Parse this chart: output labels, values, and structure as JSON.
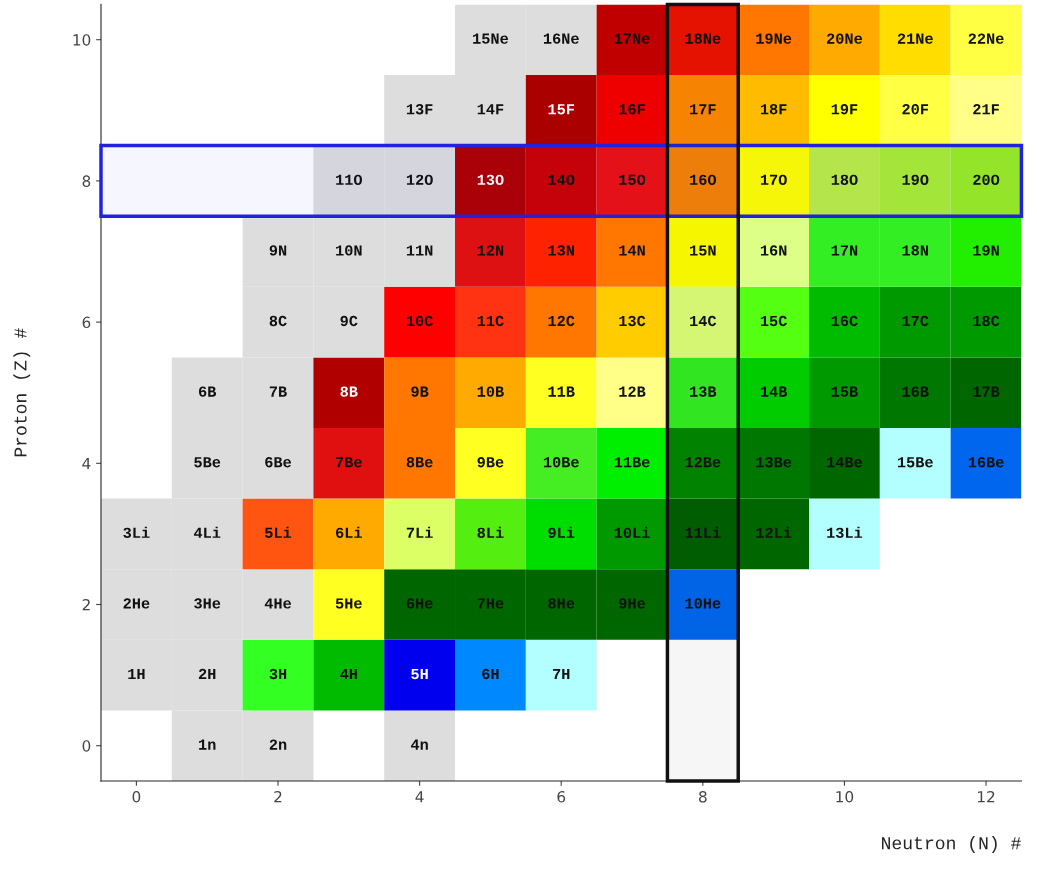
{
  "chart_data": {
    "type": "heatmap",
    "xlabel": "Neutron (N) #",
    "ylabel": "Proton (Z) #",
    "categories": [
      "0",
      null,
      "2",
      null,
      "4",
      null,
      "6",
      null,
      "8",
      null,
      "10",
      null,
      "12"
    ],
    "y_categories": [
      "10",
      null,
      "8",
      null,
      "6",
      null,
      "4",
      null,
      "2",
      null,
      "0"
    ],
    "bands": [
      {
        "axis": "y",
        "from": "8",
        "to": "8",
        "color": "#2222dd"
      },
      {
        "axis": "x",
        "from": "8",
        "to": "8",
        "color": "#111111"
      }
    ],
    "cells": [
      [
        null,
        null,
        null,
        null,
        null,
        15,
        16,
        17,
        18,
        19,
        20,
        21,
        22
      ],
      [
        null,
        null,
        null,
        null,
        13,
        14,
        15,
        16,
        17,
        18,
        19,
        20,
        21
      ],
      [
        null,
        null,
        null,
        11,
        12,
        13,
        14,
        15,
        16,
        17,
        18,
        19,
        20
      ],
      [
        null,
        null,
        9,
        10,
        11,
        12,
        13,
        14,
        15,
        16,
        17,
        18,
        19
      ],
      [
        null,
        null,
        8,
        9,
        10,
        11,
        12,
        13,
        14,
        15,
        16,
        17,
        18
      ],
      [
        null,
        6,
        7,
        8,
        9,
        10,
        11,
        12,
        13,
        14,
        15,
        16,
        17
      ],
      [
        null,
        5,
        6,
        7,
        8,
        9,
        10,
        11,
        12,
        13,
        14,
        15,
        16
      ],
      [
        3,
        4,
        5,
        6,
        7,
        8,
        9,
        10,
        11,
        12,
        13,
        null,
        null
      ],
      [
        2,
        3,
        4,
        5,
        6,
        7,
        8,
        9,
        10,
        null,
        null,
        null,
        null
      ],
      [
        1,
        2,
        3,
        4,
        5,
        6,
        7,
        null,
        null,
        null,
        null,
        null,
        null
      ],
      [
        null,
        1,
        2,
        null,
        4,
        null,
        null,
        null,
        null,
        null,
        null,
        null,
        null
      ]
    ],
    "cell_labels": [
      [
        null,
        null,
        null,
        null,
        null,
        "15Ne",
        "16Ne",
        "17Ne",
        "18Ne",
        "19Ne",
        "20Ne",
        "21Ne",
        "22Ne"
      ],
      [
        null,
        null,
        null,
        null,
        "13F",
        "14F",
        "15F",
        "16F",
        "17F",
        "18F",
        "19F",
        "20F",
        "21F"
      ],
      [
        null,
        null,
        null,
        "11O",
        "12O",
        "13O",
        "14O",
        "15O",
        "16O",
        "17O",
        "18O",
        "19O",
        "20O"
      ],
      [
        null,
        null,
        "9N",
        "10N",
        "11N",
        "12N",
        "13N",
        "14N",
        "15N",
        "16N",
        "17N",
        "18N",
        "19N"
      ],
      [
        null,
        null,
        "8C",
        "9C",
        "10C",
        "11C",
        "12C",
        "13C",
        "14C",
        "15C",
        "16C",
        "17C",
        "18C"
      ],
      [
        null,
        "6B",
        "7B",
        "8B",
        "9B",
        "10B",
        "11B",
        "12B",
        "13B",
        "14B",
        "15B",
        "16B",
        "17B"
      ],
      [
        null,
        "5Be",
        "6Be",
        "7Be",
        "8Be",
        "9Be",
        "10Be",
        "11Be",
        "12Be",
        "13Be",
        "14Be",
        "15Be",
        "16Be"
      ],
      [
        "3Li",
        "4Li",
        "5Li",
        "6Li",
        "7Li",
        "8Li",
        "9Li",
        "10Li",
        "11Li",
        "12Li",
        "13Li",
        null,
        null
      ],
      [
        "2He",
        "3He",
        "4He",
        "5He",
        "6He",
        "7He",
        "8He",
        "9He",
        "10He",
        null,
        null,
        null,
        null
      ],
      [
        "1H",
        "2H",
        "3H",
        "4H",
        "5H",
        "6H",
        "7H",
        null,
        null,
        null,
        null,
        null,
        null
      ],
      [
        null,
        "1n",
        "2n",
        null,
        "4n",
        null,
        null,
        null,
        null,
        null,
        null,
        null,
        null
      ]
    ],
    "colors": [
      [
        null,
        null,
        null,
        null,
        null,
        "#dddddd",
        "#dddddd",
        "#c00000",
        "#ee1100",
        "#ff7700",
        "#ffaa00",
        "#ffdd00",
        "#ffff44"
      ],
      [
        null,
        null,
        null,
        null,
        "#dddddd",
        "#dddddd",
        "#aa0000",
        "#ee0000",
        "#ff8800",
        "#ffbb00",
        "#ffff00",
        "#ffff44",
        "#ffff88"
      ],
      [
        null,
        null,
        null,
        "#dddddd",
        "#dddddd",
        "#b00000",
        "#cc0000",
        "#ee1111",
        "#ff8800",
        "#ffff00",
        "#bbee44",
        "#aaee33",
        "#99ee22"
      ],
      [
        null,
        null,
        "#dddddd",
        "#dddddd",
        "#dddddd",
        "#dd1111",
        "#ff2200",
        "#ff7700",
        "#ffff00",
        "#ddff88",
        "#33ee22",
        "#33ee22",
        "#22ee00"
      ],
      [
        null,
        null,
        "#dddddd",
        "#dddddd",
        "#ff0000",
        "#ff3311",
        "#ff7700",
        "#ffcc00",
        "#ddff77",
        "#55ff11",
        "#00bb00",
        "#009900",
        "#009900"
      ],
      [
        null,
        "#dddddd",
        "#dddddd",
        "#b00000",
        "#ff7700",
        "#ffaa00",
        "#ffff22",
        "#ffff88",
        "#33ee22",
        "#00cc00",
        "#009900",
        "#007700",
        "#006600"
      ],
      [
        null,
        "#dddddd",
        "#dddddd",
        "#e01010",
        "#ff7700",
        "#ffff22",
        "#44ee22",
        "#00ee00",
        "#008800",
        "#007700",
        "#006600",
        "#b3ffff",
        "#0066ee"
      ],
      [
        "#dddddd",
        "#dddddd",
        "#ff5511",
        "#ffaa00",
        "#ddff66",
        "#55ee11",
        "#00dd00",
        "#009900",
        "#006000",
        "#006600",
        "#b3ffff",
        null,
        null
      ],
      [
        "#dddddd",
        "#dddddd",
        "#dddddd",
        "#ffff22",
        "#006600",
        "#006600",
        "#006600",
        "#006600",
        "#0066ee",
        null,
        null,
        null,
        null
      ],
      [
        "#dddddd",
        "#dddddd",
        "#33ff22",
        "#00bb00",
        "#0000ee",
        "#0088ff",
        "#b3ffff",
        null,
        null,
        null,
        null,
        null,
        null
      ],
      [
        null,
        "#dddddd",
        "#dddddd",
        null,
        "#dddddd",
        null,
        null,
        null,
        null,
        null,
        null,
        null,
        null
      ]
    ]
  }
}
